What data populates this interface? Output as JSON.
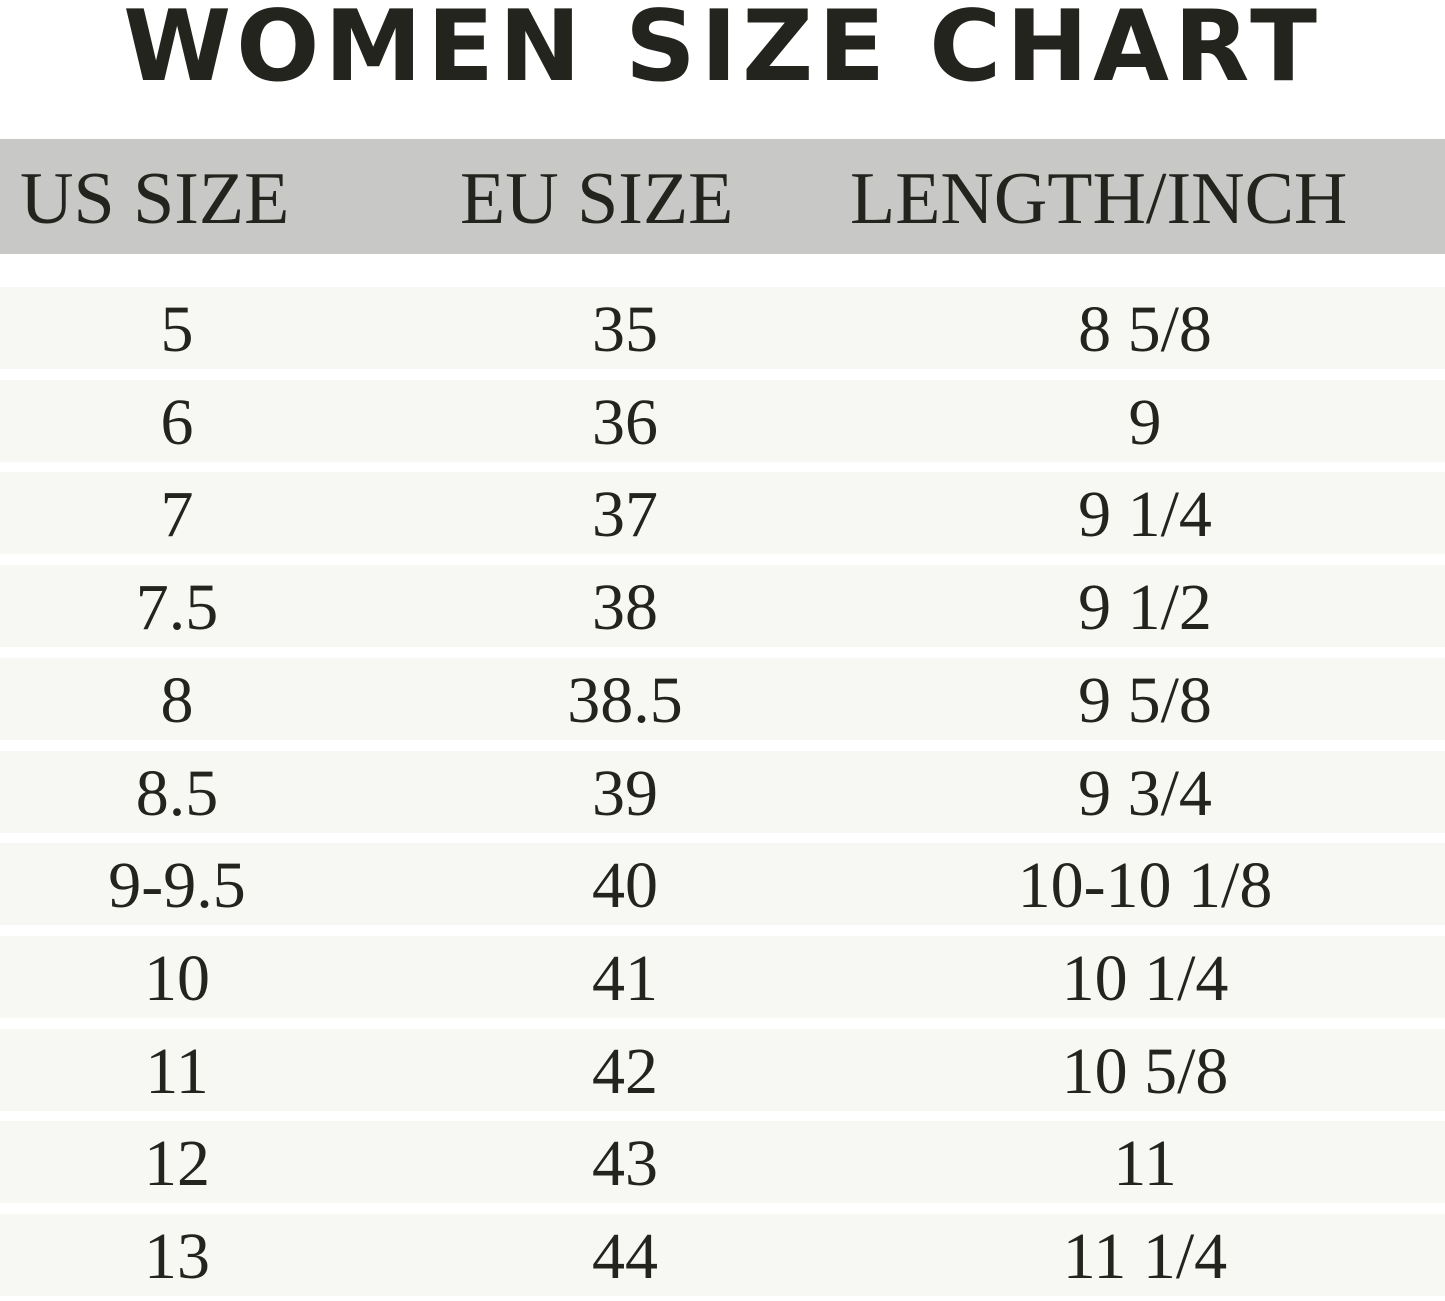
{
  "title": "WOMEN SIZE CHART",
  "colors": {
    "header_bg": "#c8c8c6",
    "row_bg": "#f7f7f4",
    "text": "#24241f"
  },
  "chart_data": {
    "type": "table",
    "title": "WOMEN SIZE CHART",
    "columns": [
      "US SIZE",
      "EU SIZE",
      "LENGTH/INCH"
    ],
    "rows": [
      [
        "5",
        "35",
        "8 5/8"
      ],
      [
        "6",
        "36",
        "9"
      ],
      [
        "7",
        "37",
        "9 1/4"
      ],
      [
        "7.5",
        "38",
        "9 1/2"
      ],
      [
        "8",
        "38.5",
        "9 5/8"
      ],
      [
        "8.5",
        "39",
        "9 3/4"
      ],
      [
        "9-9.5",
        "40",
        "10-10 1/8"
      ],
      [
        "10",
        "41",
        "10 1/4"
      ],
      [
        "11",
        "42",
        "10 5/8"
      ],
      [
        "12",
        "43",
        "11"
      ],
      [
        "13",
        "44",
        "11 1/4"
      ]
    ]
  }
}
